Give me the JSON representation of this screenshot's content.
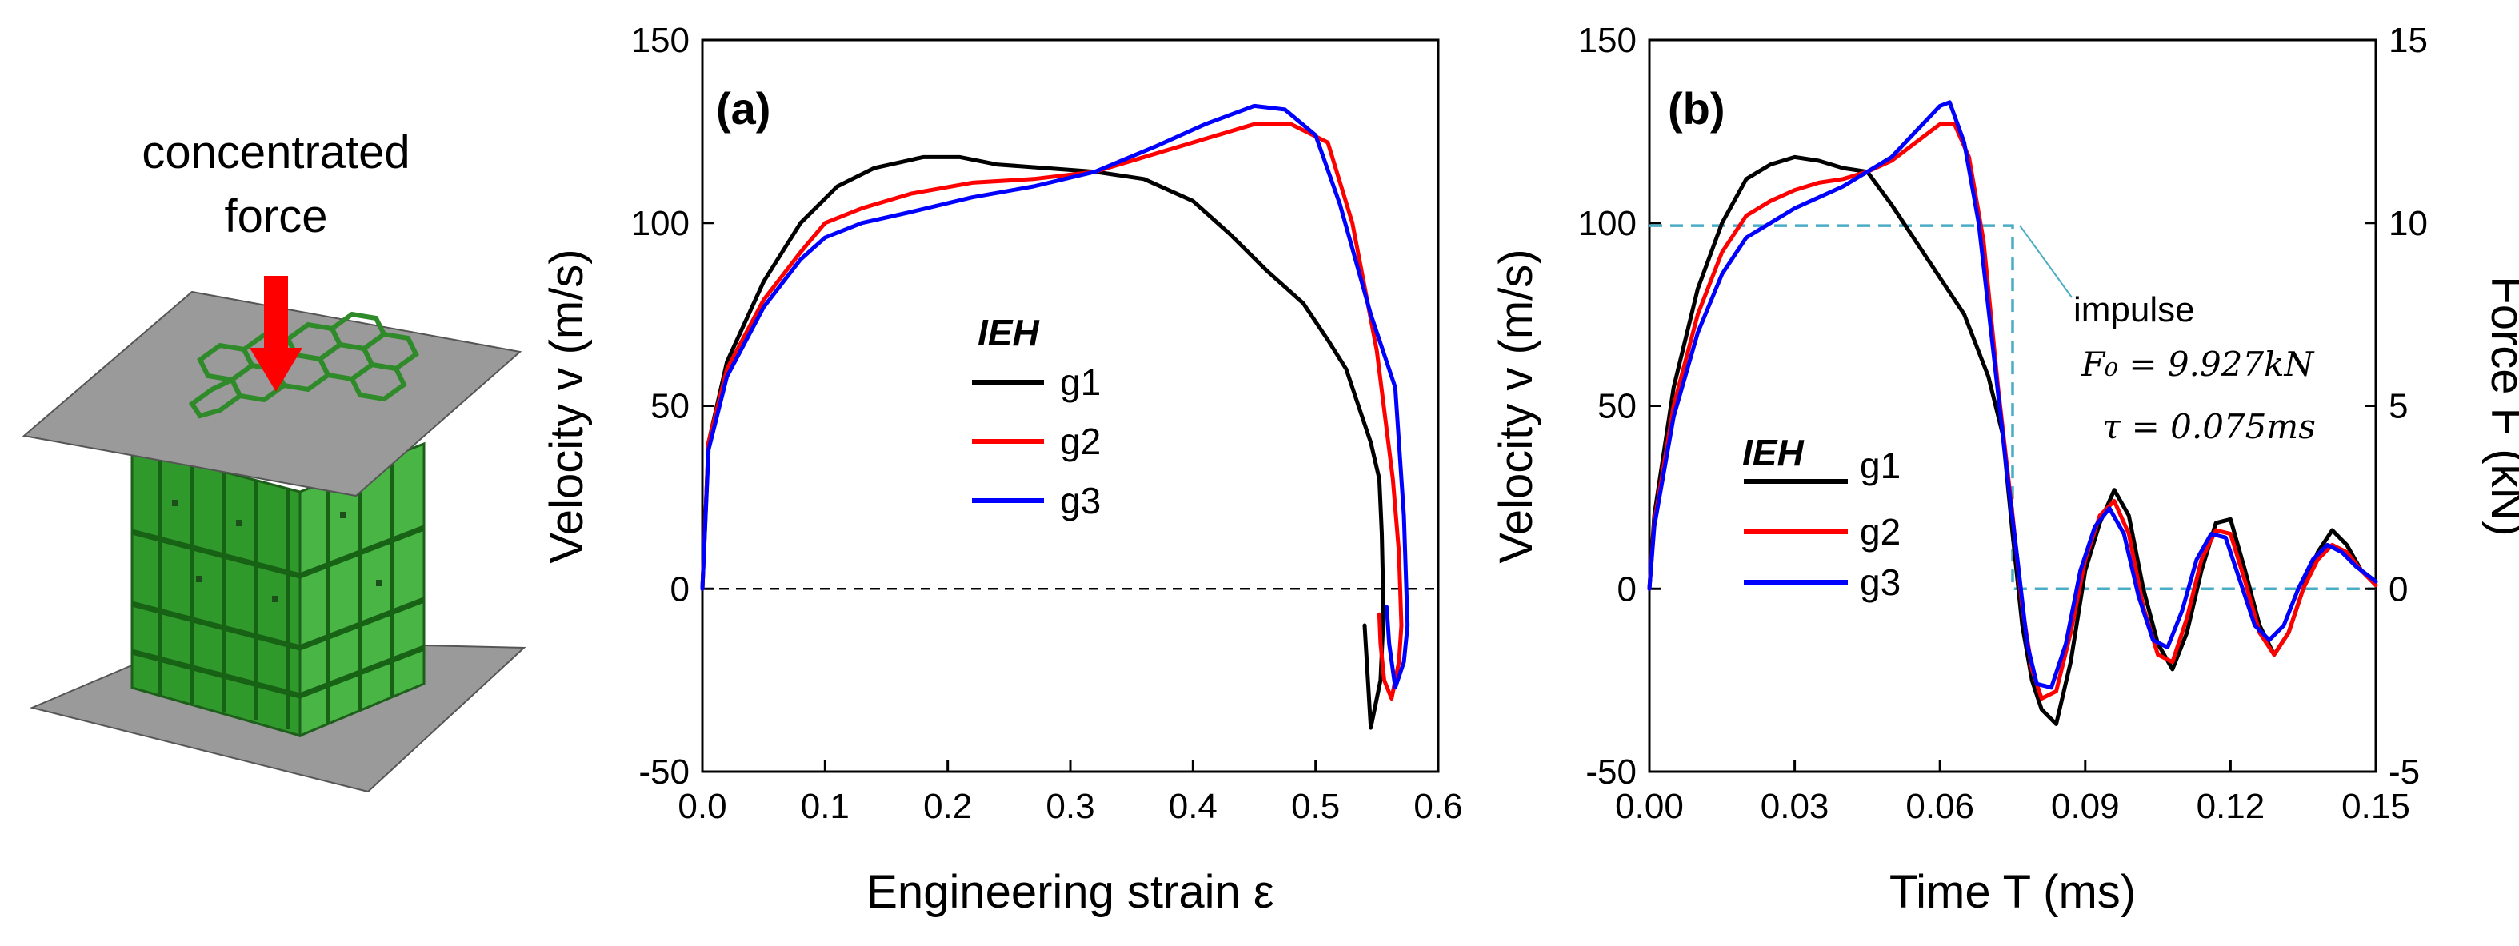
{
  "illustration": {
    "caption_line1": "concentrated",
    "caption_line2": "force",
    "colors": {
      "plate": "#9a9a9a",
      "core": "#35a531",
      "arrow": "#ff0000"
    }
  },
  "chart_data": [
    {
      "type": "line",
      "panel_label": "(a)",
      "xlabel": "Engineering strain ε",
      "ylabel": "Velocity v (m/s)",
      "xlim": [
        0,
        0.6
      ],
      "ylim": [
        -50,
        150
      ],
      "xticks": [
        0.0,
        0.1,
        0.2,
        0.3,
        0.4,
        0.5,
        0.6
      ],
      "xtick_labels": [
        "0.0",
        "0.1",
        "0.2",
        "0.3",
        "0.4",
        "0.5",
        "0.6"
      ],
      "yticks": [
        -50,
        0,
        50,
        100,
        150
      ],
      "ytick_labels": [
        "-50",
        "0",
        "50",
        "100",
        "150"
      ],
      "legend": {
        "title": "IEH",
        "position": "center-left"
      },
      "reference_line": {
        "y": 0,
        "style": "dashed"
      },
      "series": [
        {
          "name": "g1",
          "color": "#000000",
          "x": [
            0.0,
            0.005,
            0.02,
            0.05,
            0.08,
            0.11,
            0.14,
            0.18,
            0.21,
            0.24,
            0.28,
            0.32,
            0.36,
            0.4,
            0.43,
            0.46,
            0.49,
            0.51,
            0.525,
            0.535,
            0.545,
            0.552,
            0.554,
            0.555,
            0.555,
            0.553,
            0.545,
            0.54
          ],
          "y": [
            0,
            40,
            62,
            84,
            100,
            110,
            115,
            118,
            118,
            116,
            115,
            114,
            112,
            106,
            97,
            87,
            78,
            68,
            60,
            50,
            40,
            30,
            15,
            0,
            -10,
            -25,
            -38,
            -10
          ]
        },
        {
          "name": "g2",
          "color": "#ff0000",
          "x": [
            0.0,
            0.005,
            0.02,
            0.05,
            0.08,
            0.1,
            0.13,
            0.17,
            0.22,
            0.27,
            0.32,
            0.37,
            0.41,
            0.45,
            0.48,
            0.51,
            0.53,
            0.55,
            0.563,
            0.568,
            0.57,
            0.568,
            0.562,
            0.556,
            0.553,
            0.552
          ],
          "y": [
            0,
            40,
            60,
            79,
            92,
            100,
            104,
            108,
            111,
            112,
            114,
            119,
            123,
            127,
            127,
            122,
            100,
            65,
            30,
            10,
            -10,
            -20,
            -30,
            -25,
            -15,
            -7
          ]
        },
        {
          "name": "g3",
          "color": "#0000ff",
          "x": [
            0.0,
            0.005,
            0.02,
            0.05,
            0.08,
            0.1,
            0.13,
            0.17,
            0.22,
            0.27,
            0.32,
            0.37,
            0.41,
            0.45,
            0.475,
            0.5,
            0.52,
            0.545,
            0.565,
            0.572,
            0.575,
            0.572,
            0.565,
            0.56,
            0.558
          ],
          "y": [
            0,
            38,
            58,
            77,
            90,
            96,
            100,
            103,
            107,
            110,
            114,
            121,
            127,
            132,
            131,
            124,
            105,
            75,
            55,
            20,
            -10,
            -20,
            -27,
            -15,
            -5
          ]
        }
      ]
    },
    {
      "type": "line",
      "panel_label": "(b)",
      "xlabel": "Time T (ms)",
      "ylabel": "Velocity v (m/s)",
      "y2label": "Force F (kN)",
      "xlim": [
        0,
        0.15
      ],
      "ylim": [
        -50,
        150
      ],
      "y2lim": [
        -5,
        15
      ],
      "xticks": [
        0.0,
        0.03,
        0.06,
        0.09,
        0.12,
        0.15
      ],
      "xtick_labels": [
        "0.00",
        "0.03",
        "0.06",
        "0.09",
        "0.12",
        "0.15"
      ],
      "yticks": [
        -50,
        0,
        50,
        100,
        150
      ],
      "ytick_labels": [
        "-50",
        "0",
        "50",
        "100",
        "150"
      ],
      "y2ticks": [
        -5,
        0,
        5,
        10,
        15
      ],
      "y2tick_labels": [
        "-5",
        "0",
        "5",
        "10",
        "15"
      ],
      "legend": {
        "title": "IEH",
        "position": "lower-left"
      },
      "annotation": {
        "label": "impulse",
        "line1": "F₀ = 9.927kN",
        "line2": "τ = 0.075ms"
      },
      "impulse": {
        "color": "#4bacc6",
        "style": "dashed",
        "t": [
          0,
          0.075,
          0.075,
          0.15
        ],
        "F": [
          9.927,
          9.927,
          0,
          0
        ]
      },
      "series": [
        {
          "name": "g1",
          "color": "#000000",
          "x": [
            0.0,
            0.001,
            0.005,
            0.01,
            0.015,
            0.02,
            0.025,
            0.03,
            0.035,
            0.04,
            0.045,
            0.05,
            0.055,
            0.06,
            0.065,
            0.07,
            0.073,
            0.075,
            0.077,
            0.079,
            0.081,
            0.084,
            0.087,
            0.09,
            0.093,
            0.096,
            0.099,
            0.102,
            0.105,
            0.108,
            0.111,
            0.114,
            0.117,
            0.12,
            0.123,
            0.126,
            0.129,
            0.132,
            0.135,
            0.138,
            0.141,
            0.144,
            0.147,
            0.15
          ],
          "y": [
            0,
            20,
            55,
            82,
            100,
            112,
            116,
            118,
            117,
            115,
            114,
            105,
            95,
            85,
            75,
            58,
            42,
            15,
            -10,
            -25,
            -33,
            -37,
            -20,
            5,
            18,
            27,
            20,
            0,
            -15,
            -22,
            -12,
            5,
            18,
            19,
            5,
            -10,
            -18,
            -12,
            0,
            10,
            16,
            12,
            5,
            2
          ]
        },
        {
          "name": "g2",
          "color": "#ff0000",
          "x": [
            0.0,
            0.001,
            0.005,
            0.01,
            0.015,
            0.02,
            0.025,
            0.03,
            0.035,
            0.04,
            0.045,
            0.05,
            0.055,
            0.06,
            0.063,
            0.066,
            0.069,
            0.072,
            0.075,
            0.077,
            0.079,
            0.081,
            0.084,
            0.087,
            0.09,
            0.093,
            0.096,
            0.099,
            0.102,
            0.105,
            0.108,
            0.111,
            0.114,
            0.117,
            0.12,
            0.123,
            0.126,
            0.129,
            0.132,
            0.135,
            0.138,
            0.141,
            0.144,
            0.147,
            0.15
          ],
          "y": [
            0,
            18,
            50,
            75,
            92,
            102,
            106,
            109,
            111,
            112,
            114,
            117,
            122,
            127,
            127,
            118,
            95,
            55,
            20,
            -5,
            -22,
            -30,
            -28,
            -12,
            8,
            20,
            24,
            15,
            -5,
            -18,
            -20,
            -8,
            8,
            16,
            15,
            2,
            -12,
            -18,
            -12,
            0,
            8,
            12,
            10,
            5,
            1
          ]
        },
        {
          "name": "g3",
          "color": "#0000ff",
          "x": [
            0.0,
            0.001,
            0.005,
            0.01,
            0.015,
            0.02,
            0.025,
            0.03,
            0.035,
            0.04,
            0.045,
            0.05,
            0.055,
            0.06,
            0.062,
            0.065,
            0.068,
            0.071,
            0.074,
            0.076,
            0.078,
            0.08,
            0.083,
            0.086,
            0.089,
            0.092,
            0.095,
            0.098,
            0.101,
            0.104,
            0.107,
            0.11,
            0.113,
            0.116,
            0.119,
            0.122,
            0.125,
            0.128,
            0.131,
            0.134,
            0.137,
            0.14,
            0.143,
            0.146,
            0.15
          ],
          "y": [
            0,
            17,
            47,
            70,
            86,
            96,
            100,
            104,
            107,
            110,
            114,
            118,
            125,
            132,
            133,
            122,
            100,
            65,
            30,
            8,
            -15,
            -26,
            -27,
            -15,
            5,
            17,
            22,
            15,
            -2,
            -14,
            -16,
            -6,
            8,
            15,
            14,
            2,
            -10,
            -14,
            -10,
            0,
            8,
            12,
            10,
            6,
            2
          ]
        }
      ]
    }
  ]
}
